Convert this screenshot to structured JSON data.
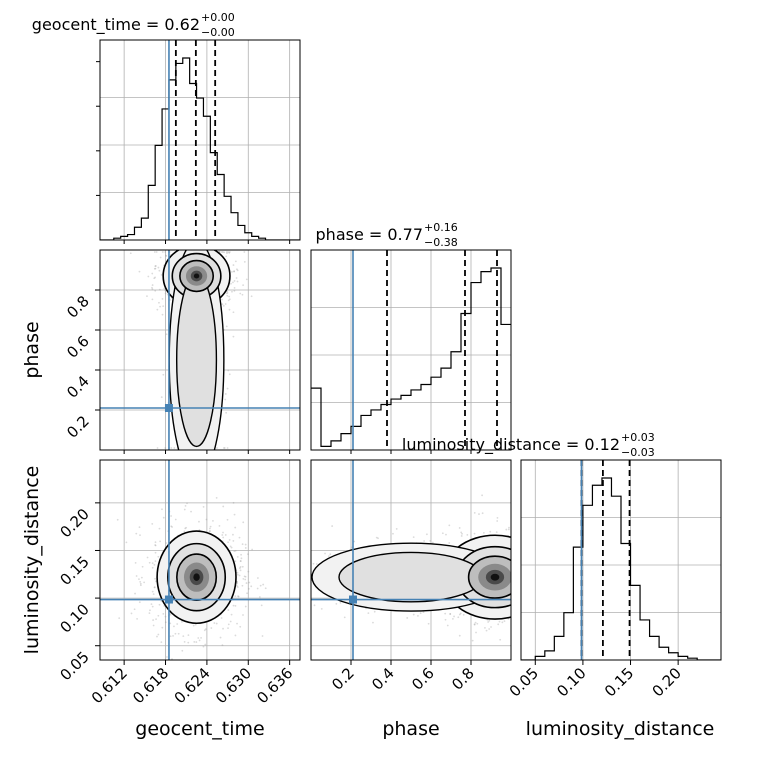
{
  "chart_data": {
    "type": "corner",
    "parameters": [
      "geocent_time",
      "phase",
      "luminosity_distance"
    ],
    "truth_values": {
      "geocent_time": 0.6185,
      "phase": 0.21,
      "luminosity_distance": 0.0985
    },
    "colors": {
      "truth": "#4682b4",
      "hist": "#000000",
      "grid": "#b0b0b0",
      "quantile": "#000000"
    },
    "axis_labels": {
      "x": [
        "geocent_time",
        "phase",
        "luminosity_distance"
      ],
      "y": [
        "phase",
        "luminosity_distance"
      ]
    },
    "tick_labels": {
      "geocent_time": [
        "0.612",
        "0.618",
        "0.624",
        "0.630",
        "0.636"
      ],
      "phase_y": [
        "0.2",
        "0.4",
        "0.6",
        "0.8"
      ],
      "phase_x": [
        "0.2",
        "0.4",
        "0.6",
        "0.8"
      ],
      "luminosity_distance_y": [
        "0.05",
        "0.10",
        "0.15",
        "0.20"
      ],
      "luminosity_distance_x": [
        "0.05",
        "0.10",
        "0.15",
        "0.20"
      ]
    },
    "titles": [
      {
        "param": "geocent_time",
        "text": "geocent_time = 0.62",
        "sup": "+0.00",
        "sub": "−0.00"
      },
      {
        "param": "phase",
        "text": "phase = 0.77",
        "sup": "+0.16",
        "sub": "−0.38"
      },
      {
        "param": "luminosity_distance",
        "text": "luminosity_distance = 0.12",
        "sup": "+0.03",
        "sub": "−0.03"
      }
    ],
    "ranges": {
      "geocent_time": [
        0.6085,
        0.6375
      ],
      "phase": [
        0.0,
        1.0
      ],
      "luminosity_distance": [
        0.035,
        0.245
      ]
    },
    "marginals": {
      "geocent_time": {
        "bins": [
          0.6085,
          0.6105,
          0.6115,
          0.6125,
          0.6135,
          0.6145,
          0.6155,
          0.6165,
          0.6175,
          0.6185,
          0.6195,
          0.6205,
          0.6215,
          0.6225,
          0.6235,
          0.6245,
          0.6255,
          0.6265,
          0.6275,
          0.6285,
          0.6295,
          0.6305,
          0.6315,
          0.6325,
          0.6335,
          0.6375
        ],
        "counts": [
          0,
          0.01,
          0.02,
          0.03,
          0.07,
          0.12,
          0.3,
          0.52,
          0.72,
          0.88,
          0.97,
          1.0,
          0.86,
          0.78,
          0.68,
          0.48,
          0.36,
          0.24,
          0.15,
          0.08,
          0.04,
          0.02,
          0.01,
          0.0,
          0.0
        ],
        "quantiles": [
          0.6195,
          0.6224,
          0.6252
        ]
      },
      "phase": {
        "bins": [
          0.0,
          0.05,
          0.1,
          0.15,
          0.2,
          0.25,
          0.3,
          0.35,
          0.4,
          0.45,
          0.5,
          0.55,
          0.6,
          0.65,
          0.7,
          0.75,
          0.8,
          0.85,
          0.9,
          0.95,
          1.0
        ],
        "counts": [
          0.34,
          0.02,
          0.05,
          0.09,
          0.13,
          0.19,
          0.22,
          0.25,
          0.28,
          0.3,
          0.33,
          0.36,
          0.4,
          0.45,
          0.54,
          0.75,
          0.92,
          0.98,
          1.0,
          0.69
        ],
        "quantiles": [
          0.38,
          0.77,
          0.93
        ]
      },
      "luminosity_distance": {
        "bins": [
          0.035,
          0.05,
          0.06,
          0.07,
          0.08,
          0.09,
          0.1,
          0.11,
          0.12,
          0.13,
          0.14,
          0.15,
          0.16,
          0.17,
          0.18,
          0.19,
          0.2,
          0.21,
          0.22,
          0.245
        ],
        "counts": [
          0.0,
          0.02,
          0.05,
          0.13,
          0.26,
          0.62,
          0.85,
          0.96,
          1.0,
          0.9,
          0.64,
          0.41,
          0.22,
          0.13,
          0.07,
          0.04,
          0.02,
          0.01,
          0.0
        ],
        "quantiles": [
          0.0985,
          0.121,
          0.149
        ]
      }
    },
    "joint": [
      {
        "x": "geocent_time",
        "y": "phase",
        "center": [
          0.6225,
          0.87
        ],
        "spread": [
          0.0022,
          0.07
        ],
        "tail": [
          0.6225,
          0.45,
          0.002,
          0.3
        ]
      },
      {
        "x": "geocent_time",
        "y": "luminosity_distance",
        "center": [
          0.6225,
          0.122
        ],
        "spread": [
          0.0026,
          0.022
        ]
      },
      {
        "x": "phase",
        "y": "luminosity_distance",
        "center": [
          0.92,
          0.122
        ],
        "spread": [
          0.12,
          0.02
        ],
        "tail": [
          0.5,
          0.122,
          0.25,
          0.018
        ]
      }
    ],
    "grid": true
  }
}
